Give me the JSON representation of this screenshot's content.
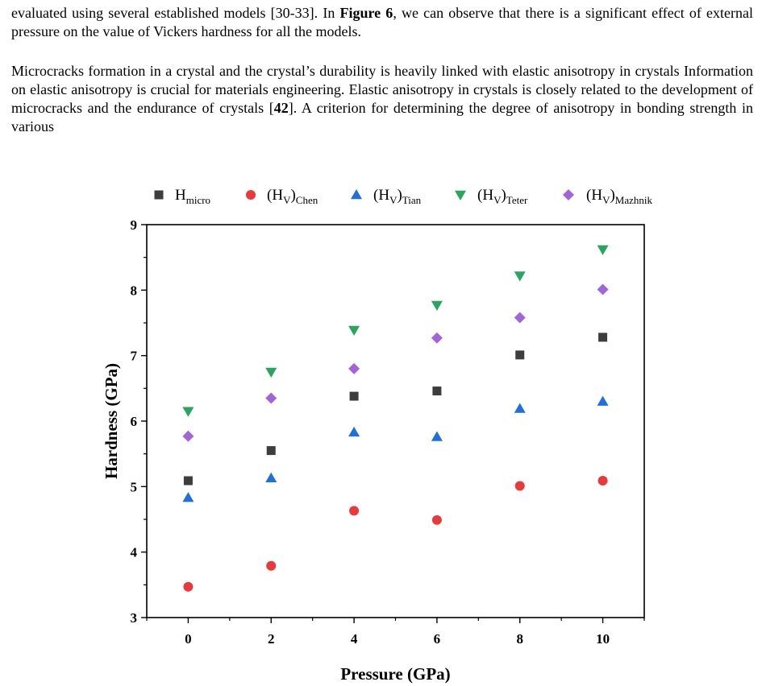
{
  "text": {
    "p1_a": "evaluated using several established models [30-33]. In ",
    "p1_fig": "Figure 6",
    "p1_b": ", we can observe that there is a significant effect of external pressure on the value of Vickers hardness for all the models.",
    "p2_a": "Microcracks formation in a crystal and the crystal’s durability is heavily linked with elastic anisotropy in crystals Information on elastic anisotropy is crucial for materials engineering. Elastic anisotropy in crystals is closely related to the development of microcracks and the endurance of crystals [",
    "p2_ref": "42",
    "p2_b": "]. A criterion for determining the degree of anisotropy in bonding strength in various"
  },
  "chart_data": {
    "type": "scatter",
    "xlabel": "Pressure (GPa)",
    "ylabel": "Hardness (GPa)",
    "x": [
      0,
      2,
      4,
      6,
      8,
      10
    ],
    "xticks": [
      "0",
      "2",
      "4",
      "6",
      "8",
      "10"
    ],
    "yticks": [
      "3",
      "4",
      "5",
      "6",
      "7",
      "8",
      "9"
    ],
    "xlim": [
      -1,
      11
    ],
    "ylim": [
      3,
      9
    ],
    "series": [
      {
        "name": "H",
        "sub": "micro",
        "paren": false,
        "marker": "square",
        "color": "#3d3d3d",
        "values": [
          5.09,
          5.55,
          6.38,
          6.46,
          7.01,
          7.28
        ]
      },
      {
        "name": "(H",
        "vsub": "V",
        "sub": "Chen",
        "paren": true,
        "marker": "circle",
        "color": "#e8393b",
        "values": [
          3.47,
          3.79,
          4.63,
          4.49,
          5.01,
          5.09
        ]
      },
      {
        "name": "(H",
        "vsub": "V",
        "sub": "Tian",
        "paren": true,
        "marker": "triangle-up",
        "color": "#1f6fdc",
        "values": [
          4.83,
          5.13,
          5.83,
          5.76,
          6.19,
          6.3
        ]
      },
      {
        "name": "(H",
        "vsub": "V",
        "sub": "Teter",
        "paren": true,
        "marker": "triangle-down",
        "color": "#2aa55d",
        "values": [
          6.15,
          6.75,
          7.39,
          7.77,
          8.22,
          8.62
        ]
      },
      {
        "name": "(H",
        "vsub": "V",
        "sub": "Mazhnik",
        "paren": true,
        "marker": "diamond",
        "color": "#a265d9",
        "values": [
          5.77,
          6.35,
          6.8,
          7.27,
          7.58,
          8.01
        ]
      }
    ]
  }
}
